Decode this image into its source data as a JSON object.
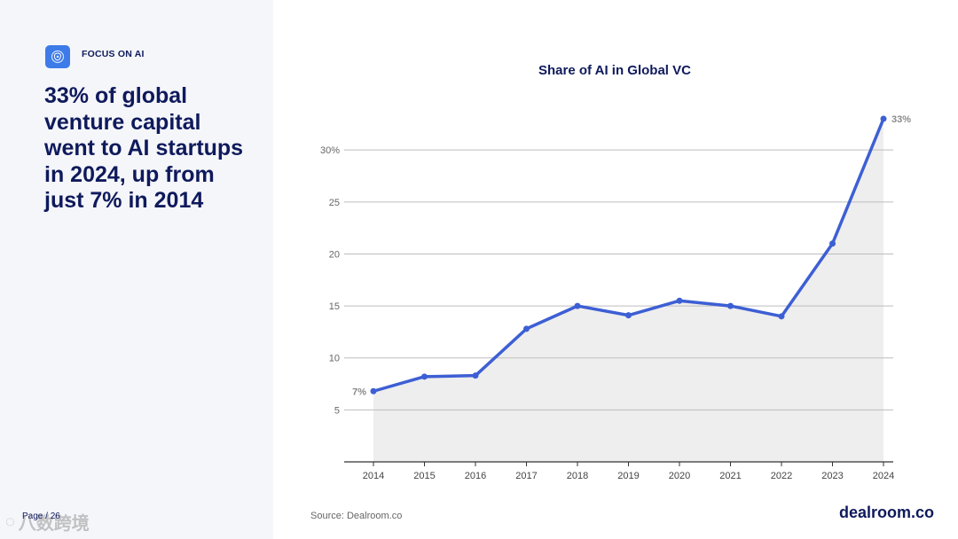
{
  "header": {
    "tag": "FOCUS ON AI",
    "icon": "ai-brain-icon"
  },
  "headline": "33% of global venture capital went to AI startups in 2024, up from just 7% in 2014",
  "footer": {
    "page": "Page / 26",
    "source": "Source: Dealroom.co",
    "brand": "dealroom.co",
    "watermark": "八数跨境"
  },
  "colors": {
    "accent": "#3d5fd4",
    "navy": "#0f1a5c",
    "area": "#eeeeee"
  },
  "chart_data": {
    "type": "area",
    "title": "Share of AI in Global VC",
    "x": [
      "2014",
      "2015",
      "2016",
      "2017",
      "2018",
      "2019",
      "2020",
      "2021",
      "2022",
      "2023",
      "2024"
    ],
    "values": [
      6.8,
      8.2,
      8.3,
      12.8,
      15.0,
      14.1,
      15.5,
      15.0,
      14.0,
      21.0,
      33.0
    ],
    "yticks": [
      "5",
      "10",
      "15",
      "20",
      "25",
      "30%"
    ],
    "ytick_values": [
      5,
      10,
      15,
      20,
      25,
      30
    ],
    "ylim": [
      0,
      33
    ],
    "labels": [
      {
        "index": 0,
        "text": "7%"
      },
      {
        "index": 10,
        "text": "33%"
      }
    ],
    "xlabel": "",
    "ylabel": ""
  }
}
